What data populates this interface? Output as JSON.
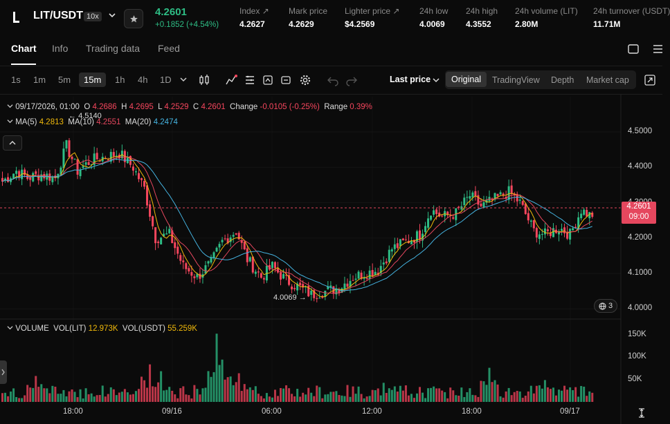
{
  "header": {
    "pair": "LIT/USDT",
    "leverage": "10x",
    "last_price": "4.2601",
    "change": "+0.1852 (+4.54%)",
    "stats": [
      {
        "label": "Index",
        "value": "4.2627",
        "link": true
      },
      {
        "label": "Mark price",
        "value": "4.2629",
        "link": false
      },
      {
        "label": "Lighter price",
        "value": "$4.2569",
        "link": true
      },
      {
        "label": "24h low",
        "value": "4.0069",
        "link": false
      },
      {
        "label": "24h high",
        "value": "4.3552",
        "link": false
      },
      {
        "label": "24h volume (LIT)",
        "value": "2.80M",
        "link": false
      },
      {
        "label": "24h turnover (USDT)",
        "value": "11.71M",
        "link": false
      }
    ]
  },
  "tabs": [
    "Chart",
    "Info",
    "Trading data",
    "Feed"
  ],
  "active_tab": "Chart",
  "toolbar": {
    "timeframes": [
      "1s",
      "1m",
      "5m",
      "15m",
      "1h",
      "4h",
      "1D"
    ],
    "active_timeframe": "15m",
    "last_price_select": "Last price",
    "views": [
      "Original",
      "TradingView",
      "Depth",
      "Market cap"
    ],
    "active_view": "Original"
  },
  "legend": {
    "datetime": "09/17/2026, 01:00",
    "o_label": "O",
    "o": "4.2686",
    "h_label": "H",
    "h": "4.2695",
    "l_label": "L",
    "l": "4.2529",
    "c_label": "C",
    "c": "4.2601",
    "change_label": "Change",
    "change": "-0.0105 (-0.25%)",
    "range_label": "Range",
    "range": "0.39%",
    "ma5_label": "MA(5)",
    "ma5": "4.2813",
    "ma10_label": "MA(10)",
    "ma10": "4.2551",
    "ma20_label": "MA(20)",
    "ma20": "4.2474"
  },
  "volume_legend": {
    "title": "VOLUME",
    "vol_lit_label": "VOL(LIT)",
    "vol_lit": "12.973K",
    "vol_usdt_label": "VOL(USDT)",
    "vol_usdt": "55.259K"
  },
  "annotations": {
    "high": "4.5140",
    "low": "4.0069"
  },
  "price_badge": {
    "price": "4.2601",
    "countdown": "09:00"
  },
  "indicator_count": "3",
  "colors": {
    "up": "#2ebd85",
    "down": "#f6465d",
    "ma5": "#f0b90b",
    "ma10": "#e5475e",
    "ma20": "#45b3e0"
  },
  "chart_data": {
    "type": "candlestick",
    "y_ticks": [
      "4.5000",
      "4.4000",
      "4.3000",
      "4.2000",
      "4.1000",
      "4.0000"
    ],
    "ylim": [
      3.985,
      4.58
    ],
    "volume_ticks": [
      "150K",
      "100K",
      "50K"
    ],
    "volume_max": 160000,
    "x_ticks": [
      "18:00",
      "09/16",
      "06:00",
      "12:00",
      "18:00",
      "09/17"
    ],
    "anchors": [
      [
        0,
        4.36
      ],
      [
        5,
        4.39
      ],
      [
        9,
        4.37
      ],
      [
        14,
        4.38
      ],
      [
        19,
        4.37
      ],
      [
        23,
        4.46
      ],
      [
        27,
        4.39
      ],
      [
        32,
        4.42
      ],
      [
        37,
        4.43
      ],
      [
        42,
        4.44
      ],
      [
        47,
        4.4
      ],
      [
        51,
        4.34
      ],
      [
        55,
        4.2
      ],
      [
        60,
        4.21
      ],
      [
        65,
        4.12
      ],
      [
        70,
        4.09
      ],
      [
        75,
        4.13
      ],
      [
        79,
        4.19
      ],
      [
        84,
        4.22
      ],
      [
        88,
        4.14
      ],
      [
        93,
        4.09
      ],
      [
        97,
        4.12
      ],
      [
        102,
        4.08
      ],
      [
        107,
        4.06
      ],
      [
        111,
        4.04
      ],
      [
        116,
        4.05
      ],
      [
        121,
        4.06
      ],
      [
        126,
        4.09
      ],
      [
        130,
        4.1
      ],
      [
        135,
        4.11
      ],
      [
        140,
        4.17
      ],
      [
        145,
        4.19
      ],
      [
        150,
        4.21
      ],
      [
        154,
        4.28
      ],
      [
        158,
        4.26
      ],
      [
        163,
        4.27
      ],
      [
        168,
        4.32
      ],
      [
        172,
        4.29
      ],
      [
        177,
        4.31
      ],
      [
        182,
        4.33
      ],
      [
        186,
        4.3
      ],
      [
        191,
        4.22
      ],
      [
        195,
        4.21
      ],
      [
        200,
        4.23
      ],
      [
        204,
        4.21
      ],
      [
        208,
        4.28
      ],
      [
        212,
        4.26
      ]
    ],
    "volume_peaks": [
      [
        53,
        0.55
      ],
      [
        77,
        1.0
      ],
      [
        79,
        0.62
      ],
      [
        57,
        0.45
      ],
      [
        12,
        0.38
      ],
      [
        85,
        0.42
      ],
      [
        175,
        0.5
      ],
      [
        137,
        0.28
      ],
      [
        195,
        0.32
      ]
    ]
  }
}
